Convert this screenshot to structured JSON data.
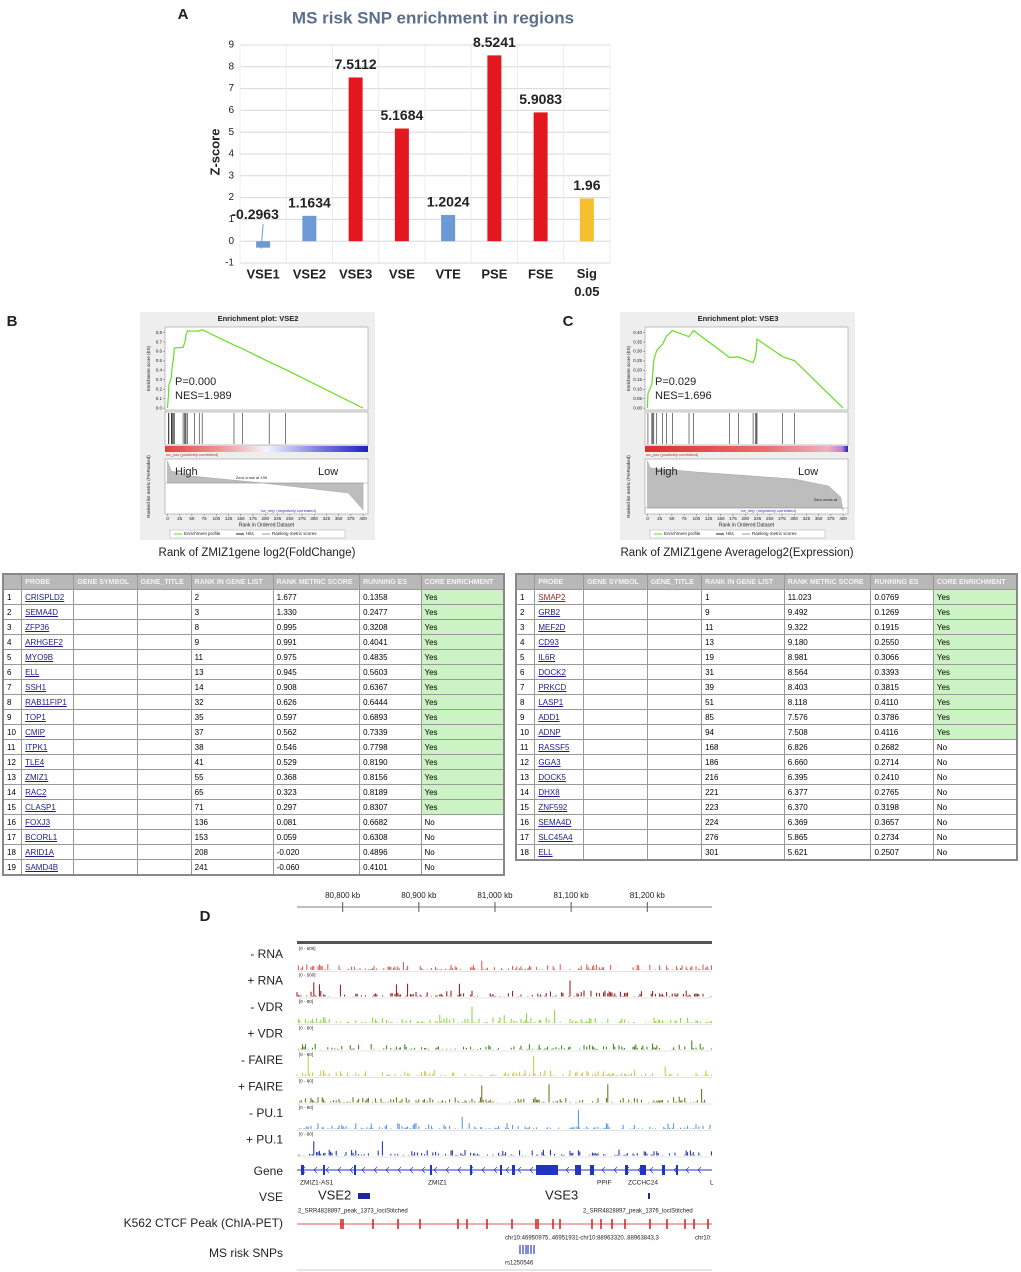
{
  "panel_labels": [
    "A",
    "B",
    "C",
    "D"
  ],
  "chart_data": [
    {
      "type": "bar",
      "title": "MS risk SNP enrichment in regions",
      "y_label": "Z-score",
      "categories": [
        "VSE1",
        "VSE2",
        "VSE3",
        "VSE",
        "VTE",
        "PSE",
        "FSE",
        "Sig 0.05"
      ],
      "values": [
        -0.2963,
        1.1634,
        7.5112,
        5.1684,
        1.2024,
        8.5241,
        5.9083,
        1.96
      ],
      "colors": [
        "#6d9ad6",
        "#6d9ad6",
        "#e3171e",
        "#e3171e",
        "#6d9ad6",
        "#e3171e",
        "#e3171e",
        "#f4c02f"
      ],
      "ylim": [
        -1,
        9
      ],
      "yticks": [
        -1,
        0,
        1,
        2,
        3,
        4,
        5,
        6,
        7,
        8,
        9
      ],
      "grid": true
    },
    {
      "type": "line",
      "title": "Enrichment plot: VSE2",
      "y_label": "Enrichment score (ES)",
      "y2_label": "Ranked list metric (PreRanked)",
      "x_label": "Rank in Ordered Dataset",
      "color": "#66dd22",
      "x": [
        0,
        2,
        3,
        8,
        9,
        11,
        13,
        14,
        32,
        35,
        37,
        38,
        41,
        55,
        65,
        71,
        136,
        153,
        208,
        241,
        400
      ],
      "values": [
        0,
        0.1358,
        0.2477,
        0.3208,
        0.4041,
        0.4835,
        0.5603,
        0.6367,
        0.6444,
        0.6893,
        0.7339,
        0.7798,
        0.819,
        0.8156,
        0.8189,
        0.8307,
        0.6682,
        0.6308,
        0.4896,
        0.4101,
        0
      ],
      "xlim": [
        -5,
        410
      ],
      "xticks": [
        0,
        25,
        50,
        75,
        100,
        125,
        150,
        175,
        200,
        225,
        250,
        275,
        300,
        325,
        350,
        375,
        400
      ],
      "ylim": [
        -0.02,
        0.86
      ],
      "yticks": [
        {
          "value": 0,
          "label": "0.0"
        },
        {
          "value": 0.1,
          "label": "0.1"
        },
        {
          "value": 0.2,
          "label": "0.2"
        },
        {
          "value": 0.3,
          "label": "0.3"
        },
        {
          "value": 0.4,
          "label": "0.4"
        },
        {
          "value": 0.5,
          "label": "0.5"
        },
        {
          "value": 0.6,
          "label": "0.6"
        },
        {
          "value": 0.7,
          "label": "0.7"
        },
        {
          "value": 0.8,
          "label": "0.8"
        }
      ],
      "annotations": {
        "p_value": "P=0.000",
        "nes": "NES=1.989",
        "high": "High",
        "low": "Low",
        "pos_label": "na_pos (positively correlated)",
        "neg_label": "'na_neg' (negatively correlated)",
        "zero_cross": "Zero cross at 195"
      },
      "legend_labels": [
        "Enrichment profile",
        "Hits",
        "Ranking metric scores"
      ],
      "caption": "Rank of ZMIZ1gene log2(FoldChange)"
    },
    {
      "type": "line",
      "title": "Enrichment plot: VSE3",
      "y_label": "Enrichment score (ES)",
      "y2_label": "Ranked list metric (PreRanked)",
      "x_label": "Rank in Ordered Dataset",
      "color": "#66dd22",
      "x": [
        0,
        1,
        9,
        11,
        13,
        19,
        31,
        39,
        51,
        85,
        94,
        168,
        186,
        216,
        221,
        223,
        224,
        276,
        301,
        400
      ],
      "values": [
        0,
        0.0769,
        0.1269,
        0.1915,
        0.255,
        0.3066,
        0.3393,
        0.3815,
        0.411,
        0.3786,
        0.4116,
        0.2682,
        0.2714,
        0.241,
        0.2765,
        0.3198,
        0.3657,
        0.2734,
        0.2507,
        0
      ],
      "xlim": [
        -5,
        410
      ],
      "xticks": [
        0,
        25,
        50,
        75,
        100,
        125,
        150,
        175,
        200,
        225,
        250,
        275,
        300,
        325,
        350,
        375,
        400
      ],
      "ylim": [
        -0.01,
        0.43
      ],
      "yticks": [
        {
          "value": 0,
          "label": "0.00"
        },
        {
          "value": 0.05,
          "label": "0.05"
        },
        {
          "value": 0.1,
          "label": "0.10"
        },
        {
          "value": 0.15,
          "label": "0.15"
        },
        {
          "value": 0.2,
          "label": "0.20"
        },
        {
          "value": 0.25,
          "label": "0.25"
        },
        {
          "value": 0.3,
          "label": "0.30"
        },
        {
          "value": 0.35,
          "label": "0.35"
        },
        {
          "value": 0.4,
          "label": "0.40"
        }
      ],
      "annotations": {
        "p_value": "P=0.029",
        "nes": "NES=1.696",
        "high": "High",
        "low": "Low",
        "pos_label": "na_pos (positively correlated)",
        "neg_label": "'na_neg' (negatively correlated)",
        "zero_cross": "Zero cross at"
      },
      "legend_labels": [
        "Enrichment profile",
        "Hits",
        "Ranking metric scores"
      ],
      "caption": "Rank of ZMIZ1gene Averagelog2(Expression)"
    }
  ],
  "tables": [
    {
      "header": [
        "PROBE",
        "GENE SYMBOL",
        "GENE_TITLE",
        "RANK IN GENE LIST",
        "RANK METRIC SCORE",
        "RUNNING ES",
        "CORE ENRICHMENT"
      ],
      "rows": [
        [
          "1",
          "CRISPLD2",
          "2",
          "1.677",
          "0.1358",
          "Yes"
        ],
        [
          "2",
          "SEMA4D",
          "3",
          "1.330",
          "0.2477",
          "Yes"
        ],
        [
          "3",
          "ZFP36",
          "8",
          "0.995",
          "0.3208",
          "Yes"
        ],
        [
          "4",
          "ARHGEF2",
          "9",
          "0.991",
          "0.4041",
          "Yes"
        ],
        [
          "5",
          "MYO9B",
          "11",
          "0.975",
          "0.4835",
          "Yes"
        ],
        [
          "6",
          "ELL",
          "13",
          "0.945",
          "0.5603",
          "Yes"
        ],
        [
          "7",
          "SSH1",
          "14",
          "0.908",
          "0.6367",
          "Yes"
        ],
        [
          "8",
          "RAB11FIP1",
          "32",
          "0.626",
          "0.6444",
          "Yes"
        ],
        [
          "9",
          "TOP1",
          "35",
          "0.597",
          "0.6893",
          "Yes"
        ],
        [
          "10",
          "CMIP",
          "37",
          "0.562",
          "0.7339",
          "Yes"
        ],
        [
          "11",
          "ITPK1",
          "38",
          "0.546",
          "0.7798",
          "Yes"
        ],
        [
          "12",
          "TLE4",
          "41",
          "0.529",
          "0.8190",
          "Yes"
        ],
        [
          "13",
          "ZMIZ1",
          "55",
          "0.368",
          "0.8156",
          "Yes"
        ],
        [
          "14",
          "RAC2",
          "65",
          "0.323",
          "0.8189",
          "Yes"
        ],
        [
          "15",
          "CLASP1",
          "71",
          "0.297",
          "0.8307",
          "Yes"
        ],
        [
          "16",
          "FOXJ3",
          "136",
          "0.081",
          "0.6682",
          "No"
        ],
        [
          "17",
          "BCORL1",
          "153",
          "0.059",
          "0.6308",
          "No"
        ],
        [
          "18",
          "ARID1A",
          "208",
          "-0.020",
          "0.4896",
          "No"
        ],
        [
          "19",
          "SAMD4B",
          "241",
          "-0.060",
          "0.4101",
          "No"
        ]
      ]
    },
    {
      "header": [
        "PROBE",
        "GENE SYMBOL",
        "GENE_TITLE",
        "RANK IN GENE LIST",
        "RANK METRIC SCORE",
        "RUNNING ES",
        "CORE ENRICHMENT"
      ],
      "rows": [
        [
          "1",
          "SMAP2",
          "1",
          "11.023",
          "0.0769",
          "Yes"
        ],
        [
          "2",
          "GRB2",
          "9",
          "9.492",
          "0.1269",
          "Yes"
        ],
        [
          "3",
          "MEF2D",
          "11",
          "9.322",
          "0.1915",
          "Yes"
        ],
        [
          "4",
          "CD93",
          "13",
          "9.180",
          "0.2550",
          "Yes"
        ],
        [
          "5",
          "IL6R",
          "19",
          "8.981",
          "0.3066",
          "Yes"
        ],
        [
          "6",
          "DOCK2",
          "31",
          "8.564",
          "0.3393",
          "Yes"
        ],
        [
          "7",
          "PRKCD",
          "39",
          "8.403",
          "0.3815",
          "Yes"
        ],
        [
          "8",
          "LASP1",
          "51",
          "8.118",
          "0.4110",
          "Yes"
        ],
        [
          "9",
          "ADD1",
          "85",
          "7.576",
          "0.3786",
          "Yes"
        ],
        [
          "10",
          "ADNP",
          "94",
          "7.508",
          "0.4116",
          "Yes"
        ],
        [
          "11",
          "RASSF5",
          "168",
          "6.826",
          "0.2682",
          "No"
        ],
        [
          "12",
          "GGA3",
          "186",
          "6.660",
          "0.2714",
          "No"
        ],
        [
          "13",
          "DOCK5",
          "216",
          "6.395",
          "0.2410",
          "No"
        ],
        [
          "14",
          "DHX8",
          "221",
          "6.377",
          "0.2765",
          "No"
        ],
        [
          "15",
          "ZNF592",
          "223",
          "6.370",
          "0.3198",
          "No"
        ],
        [
          "16",
          "SEMA4D",
          "224",
          "6.369",
          "0.3657",
          "No"
        ],
        [
          "17",
          "SLC45A4",
          "276",
          "5.865",
          "0.2734",
          "No"
        ],
        [
          "18",
          "ELL",
          "301",
          "5.621",
          "0.2507",
          "No"
        ]
      ]
    }
  ],
  "genome_browser": {
    "xlim": [
      80740,
      81285
    ],
    "xticks": [
      {
        "value": 80800,
        "label": "80,800 kb"
      },
      {
        "value": 80900,
        "label": "80,900 kb"
      },
      {
        "value": 81000,
        "label": "81,000 kb"
      },
      {
        "value": 81100,
        "label": "81,100 kb"
      },
      {
        "value": 81200,
        "label": "81,200 kb"
      }
    ],
    "tracks": [
      {
        "label": "- RNA",
        "range": "[0 - 500]",
        "color": "#e05050"
      },
      {
        "label": "+ RNA",
        "range": "[0 - 500]",
        "color": "#8c1212"
      },
      {
        "label": "- VDR",
        "range": "[0 - 80]",
        "color": "#86d43c"
      },
      {
        "label": "+ VDR",
        "range": "[0 - 80]",
        "color": "#3b7a12"
      },
      {
        "label": "- FAIRE",
        "range": "[0 - 80]",
        "color": "#c9c93a"
      },
      {
        "label": "+ FAIRE",
        "range": "[0 - 80]",
        "color": "#6a6a14"
      },
      {
        "label": "- PU.1",
        "range": "[0 - 80]",
        "color": "#4c92e4"
      },
      {
        "label": "+ PU.1",
        "range": "[0 - 80]",
        "color": "#1b2a98"
      }
    ],
    "gene_label": "Gene",
    "gene_names": [
      "ZMIZ1-AS1",
      "ZMIZ1",
      "PPIF",
      "ZCCHC24",
      "L"
    ],
    "vse_label": "VSE",
    "vse_names": [
      "VSE2",
      "VSE3"
    ],
    "peak_labels": [
      "2_SRR4828897_peak_1373_lociStitched",
      "2_SRR4828897_peak_1376_lociStitched"
    ],
    "ctcf_label": "K562 CTCF Peak (ChIA-PET)",
    "chr_labels": [
      "chr10:46950975..46951931-chr10:88963320..88963843,3",
      "chr10:"
    ],
    "snp_label": "MS risk SNPs",
    "snp_names": [
      "rs1250546"
    ]
  }
}
